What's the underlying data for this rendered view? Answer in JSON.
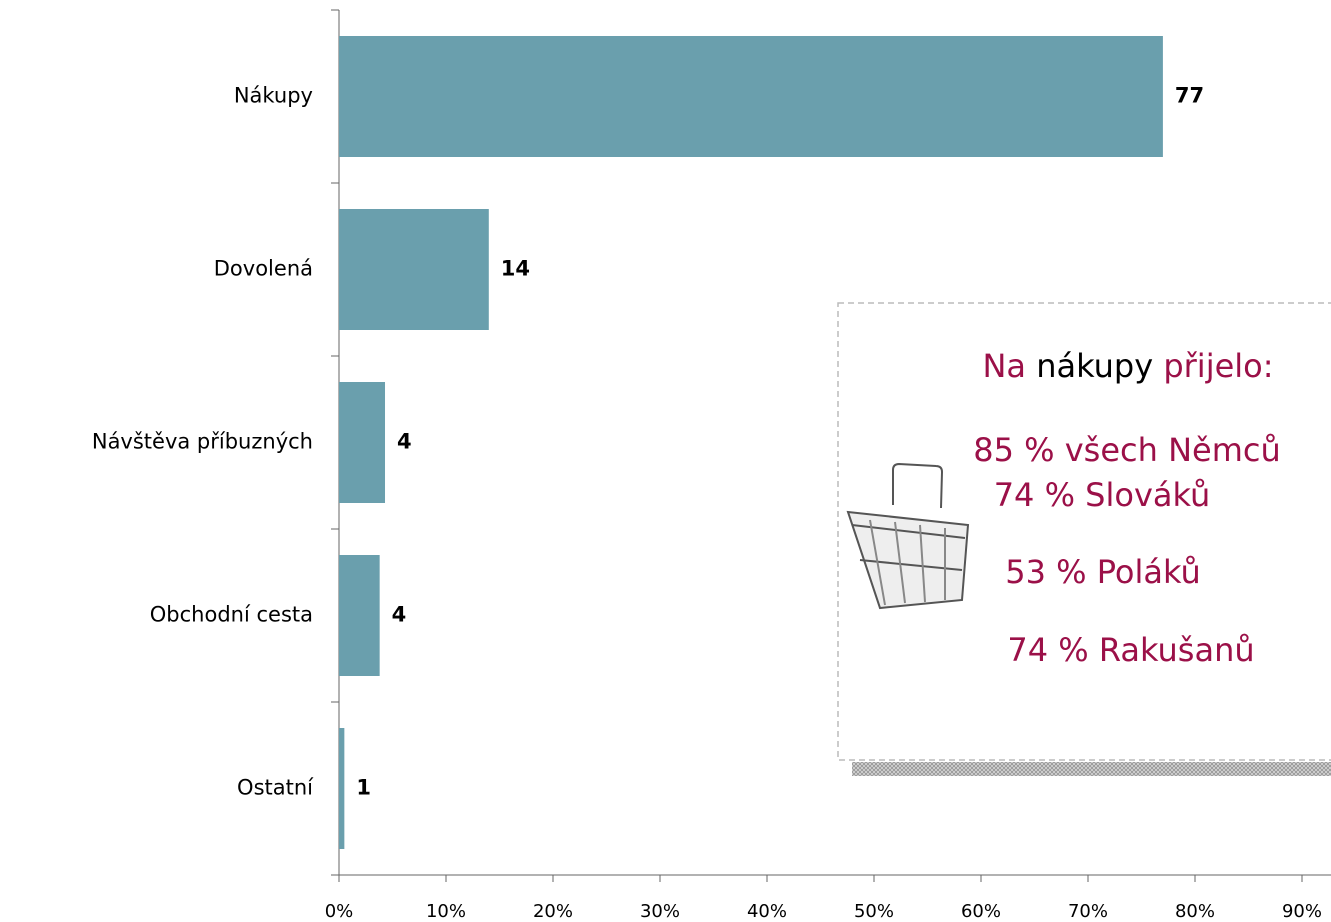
{
  "chart_data": {
    "type": "hbar",
    "categories": [
      "Nákupy",
      "Dovolená",
      "Návštěva příbuzných",
      "Obchodní cesta",
      "Ostatní"
    ],
    "values": [
      77,
      14,
      4.3,
      3.8,
      0.5
    ],
    "value_labels": [
      "77",
      "14",
      "4",
      "4",
      "1"
    ],
    "color": "#6a9fad",
    "xlim": [
      0,
      90
    ],
    "xticks": [
      {
        "value": 0,
        "label": "0%"
      },
      {
        "value": 10,
        "label": "10%"
      },
      {
        "value": 20,
        "label": "20%"
      },
      {
        "value": 30,
        "label": "30%"
      },
      {
        "value": 40,
        "label": "40%"
      },
      {
        "value": 50,
        "label": "50%"
      },
      {
        "value": 60,
        "label": "60%"
      },
      {
        "value": 70,
        "label": "70%"
      },
      {
        "value": 80,
        "label": "80%"
      },
      {
        "value": 90,
        "label": "90%"
      }
    ],
    "annotation": {
      "title": [
        "Na",
        "nákupy",
        "přijelo:"
      ],
      "lines": [
        "85 % všech Němců",
        "74 % Slováků",
        "53 % Poláků",
        "74 % Rakušanů"
      ]
    }
  }
}
